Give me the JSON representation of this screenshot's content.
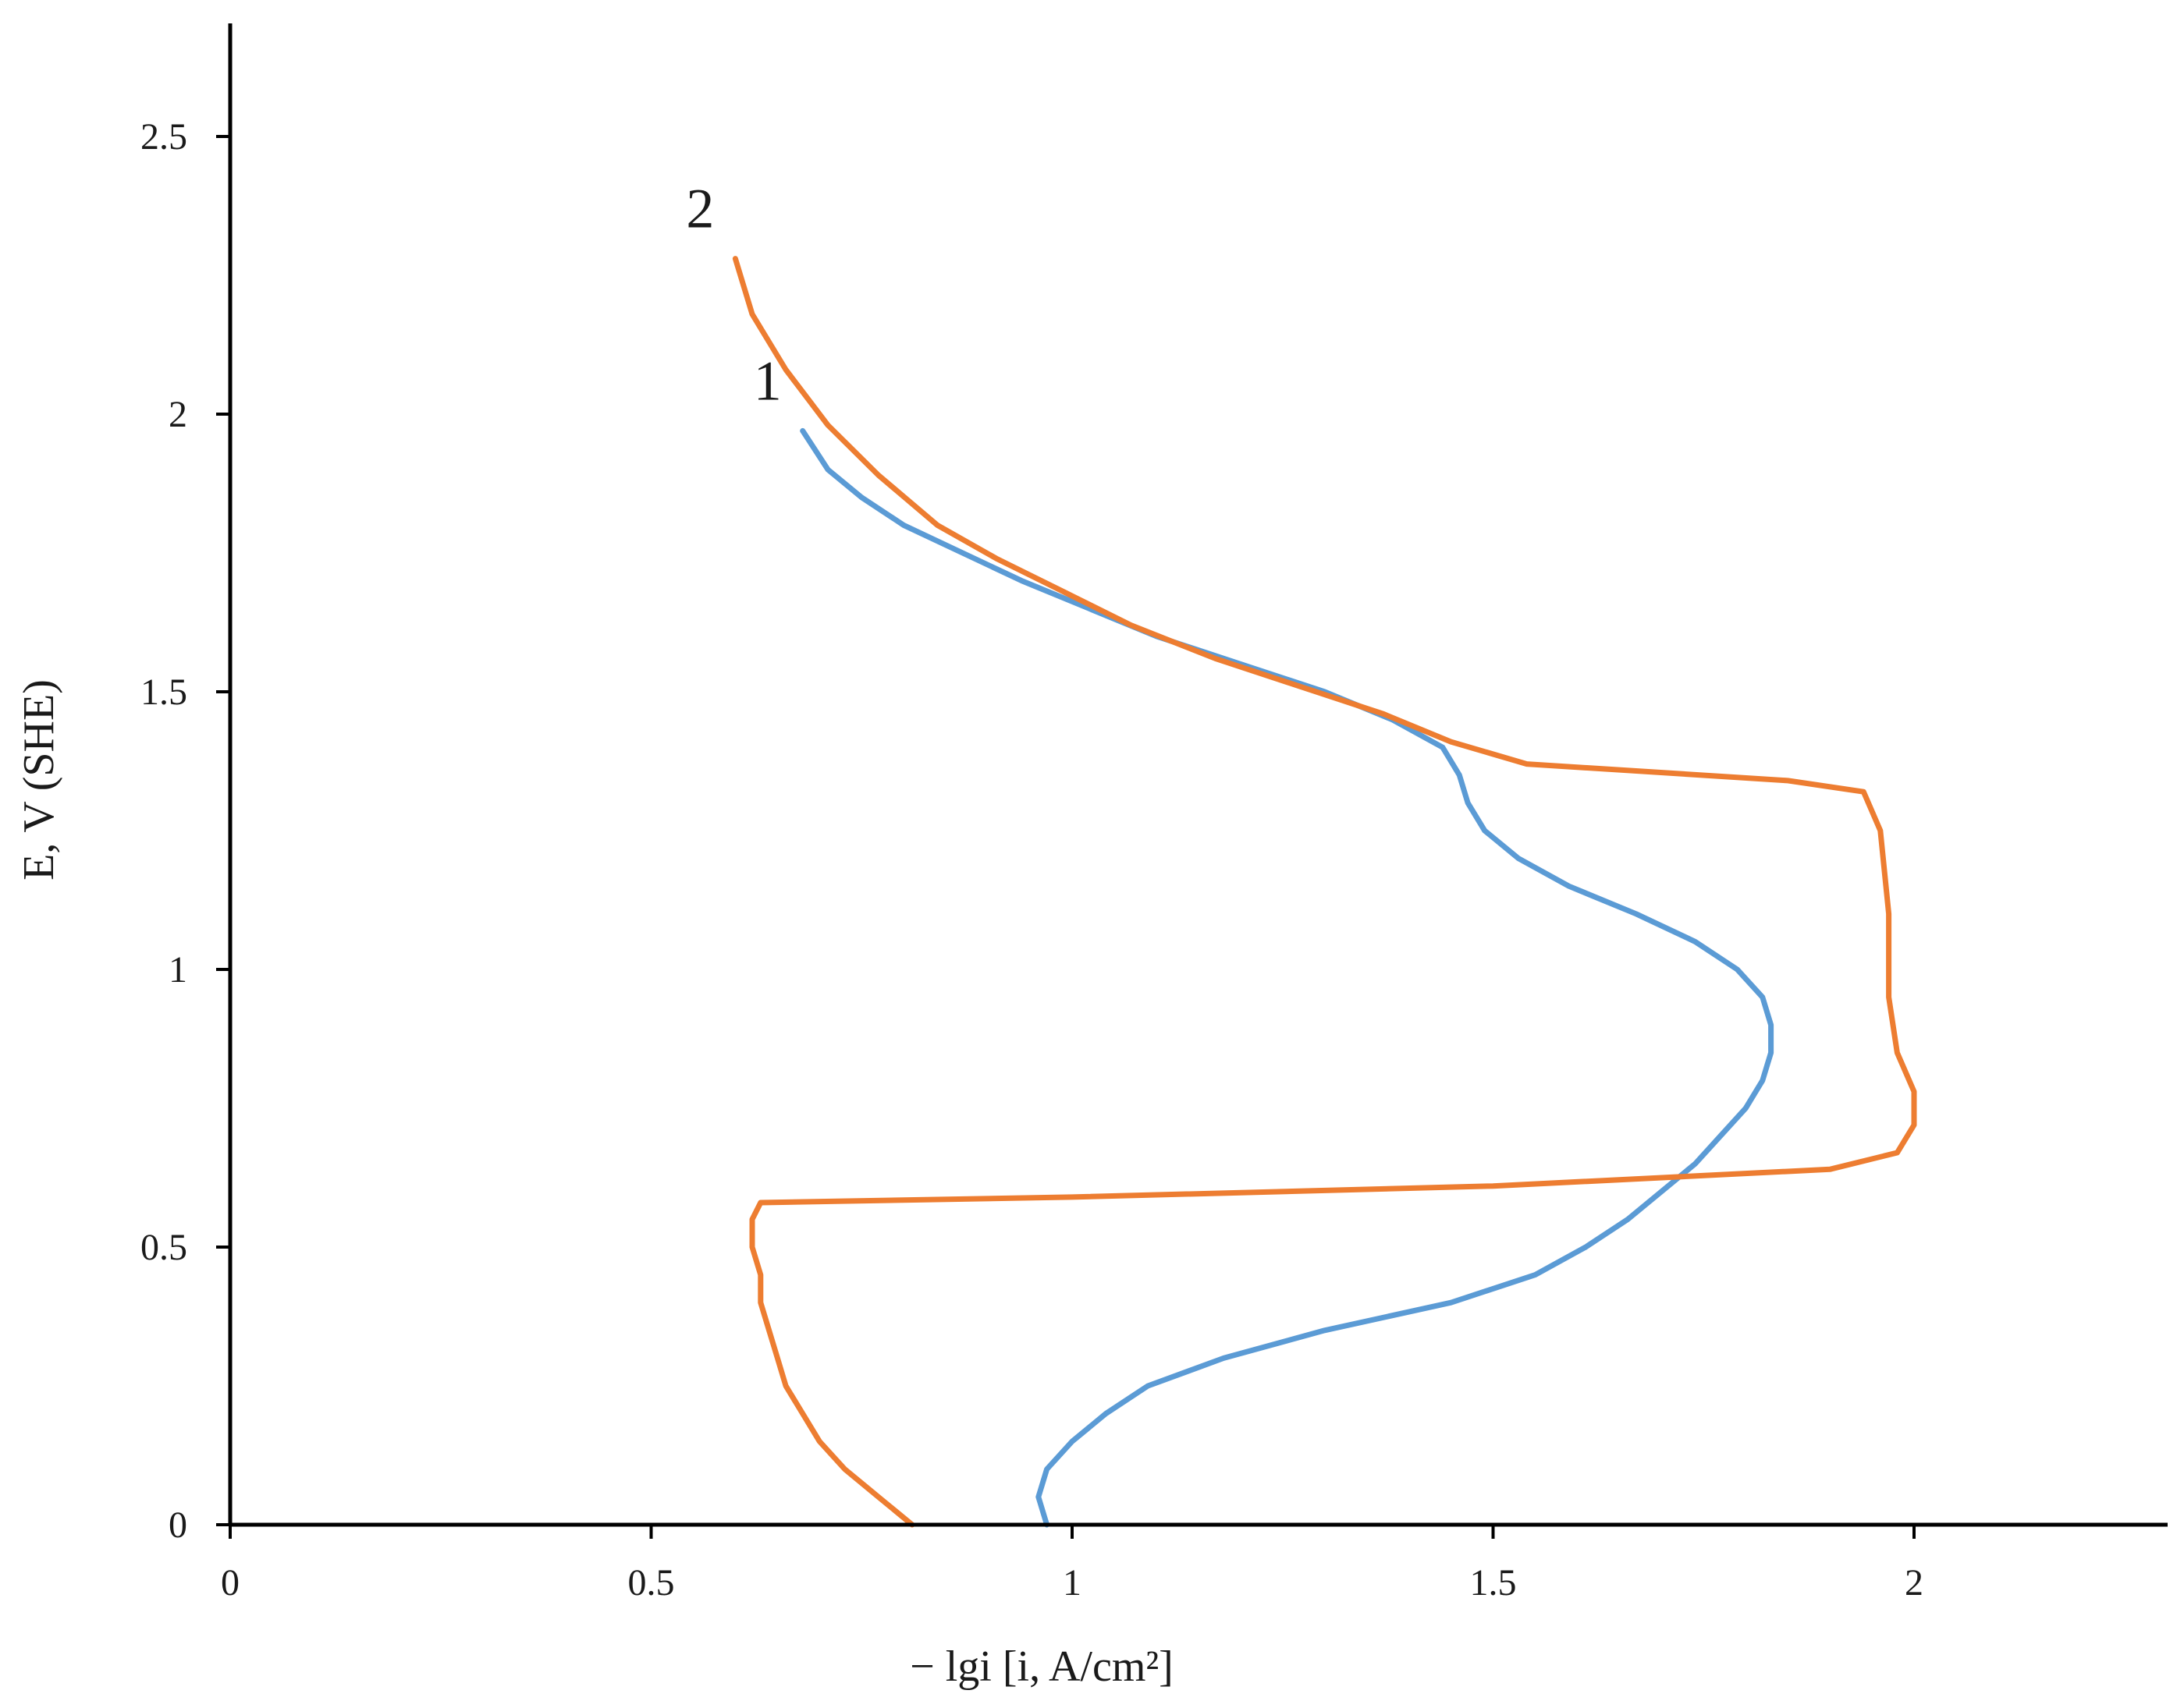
{
  "chart_data": {
    "type": "line",
    "title": "",
    "xlabel": "− lgi [i, A/cm²]",
    "ylabel": "E, V (SHE)",
    "xlim": [
      0,
      2.3
    ],
    "ylim": [
      0,
      2.7
    ],
    "x_ticks": [
      0,
      0.5,
      1,
      1.5,
      2
    ],
    "x_tick_labels": [
      "0",
      "0.5",
      "1",
      "1.5",
      "2"
    ],
    "y_ticks": [
      0,
      0.5,
      1,
      1.5,
      2,
      2.5
    ],
    "y_tick_labels": [
      "0",
      "0.5",
      "1",
      "1.5",
      "2",
      "2.5"
    ],
    "grid": false,
    "legend": "none",
    "series": [
      {
        "label": "1",
        "color": "#5b9bd5",
        "points": [
          [
            0.97,
            0.0
          ],
          [
            0.96,
            0.05
          ],
          [
            0.97,
            0.1
          ],
          [
            1.0,
            0.15
          ],
          [
            1.04,
            0.2
          ],
          [
            1.09,
            0.25
          ],
          [
            1.18,
            0.3
          ],
          [
            1.3,
            0.35
          ],
          [
            1.45,
            0.4
          ],
          [
            1.55,
            0.45
          ],
          [
            1.61,
            0.5
          ],
          [
            1.66,
            0.55
          ],
          [
            1.7,
            0.6
          ],
          [
            1.74,
            0.65
          ],
          [
            1.77,
            0.7
          ],
          [
            1.8,
            0.75
          ],
          [
            1.82,
            0.8
          ],
          [
            1.83,
            0.85
          ],
          [
            1.83,
            0.9
          ],
          [
            1.82,
            0.95
          ],
          [
            1.79,
            1.0
          ],
          [
            1.74,
            1.05
          ],
          [
            1.67,
            1.1
          ],
          [
            1.59,
            1.15
          ],
          [
            1.53,
            1.2
          ],
          [
            1.49,
            1.25
          ],
          [
            1.47,
            1.3
          ],
          [
            1.46,
            1.35
          ],
          [
            1.44,
            1.4
          ],
          [
            1.38,
            1.45
          ],
          [
            1.3,
            1.5
          ],
          [
            1.2,
            1.55
          ],
          [
            1.1,
            1.6
          ],
          [
            1.02,
            1.65
          ],
          [
            0.94,
            1.7
          ],
          [
            0.87,
            1.75
          ],
          [
            0.8,
            1.8
          ],
          [
            0.75,
            1.85
          ],
          [
            0.71,
            1.9
          ],
          [
            0.68,
            1.97
          ]
        ]
      },
      {
        "label": "2",
        "color": "#ed7d31",
        "points": [
          [
            0.81,
            0.0
          ],
          [
            0.77,
            0.05
          ],
          [
            0.73,
            0.1
          ],
          [
            0.7,
            0.15
          ],
          [
            0.68,
            0.2
          ],
          [
            0.66,
            0.25
          ],
          [
            0.65,
            0.3
          ],
          [
            0.64,
            0.35
          ],
          [
            0.63,
            0.4
          ],
          [
            0.63,
            0.45
          ],
          [
            0.62,
            0.5
          ],
          [
            0.62,
            0.55
          ],
          [
            0.63,
            0.58
          ],
          [
            1.0,
            0.59
          ],
          [
            1.5,
            0.61
          ],
          [
            1.9,
            0.64
          ],
          [
            1.98,
            0.67
          ],
          [
            2.0,
            0.72
          ],
          [
            2.0,
            0.78
          ],
          [
            1.98,
            0.85
          ],
          [
            1.97,
            0.95
          ],
          [
            1.97,
            1.1
          ],
          [
            1.96,
            1.25
          ],
          [
            1.94,
            1.32
          ],
          [
            1.85,
            1.34
          ],
          [
            1.54,
            1.37
          ],
          [
            1.45,
            1.41
          ],
          [
            1.37,
            1.46
          ],
          [
            1.27,
            1.51
          ],
          [
            1.17,
            1.56
          ],
          [
            1.07,
            1.62
          ],
          [
            0.99,
            1.68
          ],
          [
            0.91,
            1.74
          ],
          [
            0.84,
            1.8
          ],
          [
            0.77,
            1.89
          ],
          [
            0.71,
            1.98
          ],
          [
            0.66,
            2.08
          ],
          [
            0.62,
            2.18
          ],
          [
            0.6,
            2.28
          ]
        ]
      }
    ]
  }
}
